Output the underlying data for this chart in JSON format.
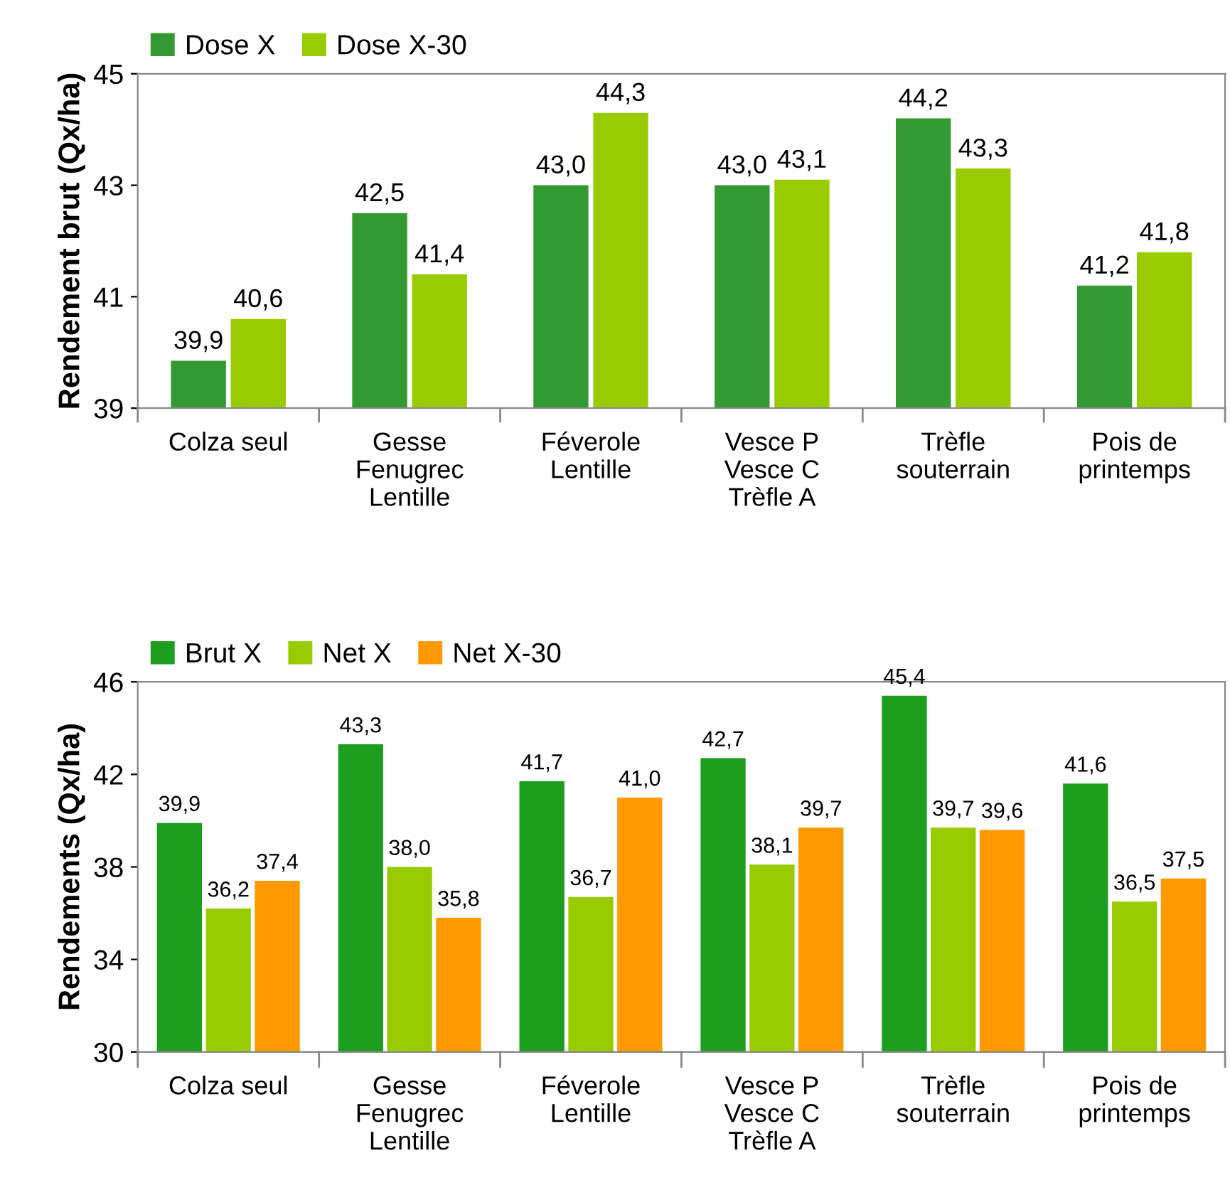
{
  "chart_data": [
    {
      "type": "bar",
      "ylabel": "Rendement brut (Qx/ha)",
      "categories": [
        "Colza seul",
        "Gesse\nFenugrec\nLentille",
        "Féverole\nLentille",
        "Vesce P\nVesce C\nTrèfle A",
        "Trèfle\nsouterrain",
        "Pois de\nprintemps"
      ],
      "series": [
        {
          "name": "Dose X",
          "color": "#339933",
          "values": [
            39.85,
            42.5,
            43.0,
            43.0,
            44.2,
            41.2
          ],
          "value_labels": [
            "39,9",
            "42,5",
            "43,0",
            "43,0",
            "44,2",
            "41,2"
          ]
        },
        {
          "name": "Dose X-30",
          "color": "#99cc00",
          "values": [
            40.6,
            41.4,
            44.3,
            43.1,
            43.3,
            41.8
          ],
          "value_labels": [
            "40,6",
            "41,4",
            "44,3",
            "43,1",
            "43,3",
            "41,8"
          ]
        }
      ],
      "ylim": [
        39,
        45
      ],
      "yticks": [
        39,
        41,
        43,
        45
      ],
      "grid": false,
      "legend": "top left"
    },
    {
      "type": "bar",
      "ylabel": "Rendements (Qx/ha)",
      "categories": [
        "Colza seul",
        "Gesse\nFenugrec\nLentille",
        "Féverole\nLentille",
        "Vesce P\nVesce C\nTrèfle A",
        "Trèfle\nsouterrain",
        "Pois de\nprintemps"
      ],
      "series": [
        {
          "name": "Brut X",
          "color": "#1e9e1e",
          "values": [
            39.9,
            43.3,
            41.7,
            42.7,
            45.4,
            41.6
          ],
          "value_labels": [
            "39,9",
            "43,3",
            "41,7",
            "42,7",
            "45,4",
            "41,6"
          ]
        },
        {
          "name": "Net X",
          "color": "#99cc00",
          "values": [
            36.2,
            38.0,
            36.7,
            38.1,
            39.7,
            36.5
          ],
          "value_labels": [
            "36,2",
            "38,0",
            "36,7",
            "38,1",
            "39,7",
            "36,5"
          ]
        },
        {
          "name": "Net X-30",
          "color": "#ff9900",
          "values": [
            37.4,
            35.8,
            41.0,
            39.7,
            39.6,
            37.5
          ],
          "value_labels": [
            "37,4",
            "35,8",
            "41,0",
            "39,7",
            "39,6",
            "37,5"
          ]
        }
      ],
      "ylim": [
        30,
        46
      ],
      "yticks": [
        30,
        34,
        38,
        42,
        46
      ],
      "grid": false,
      "legend": "top left"
    }
  ]
}
